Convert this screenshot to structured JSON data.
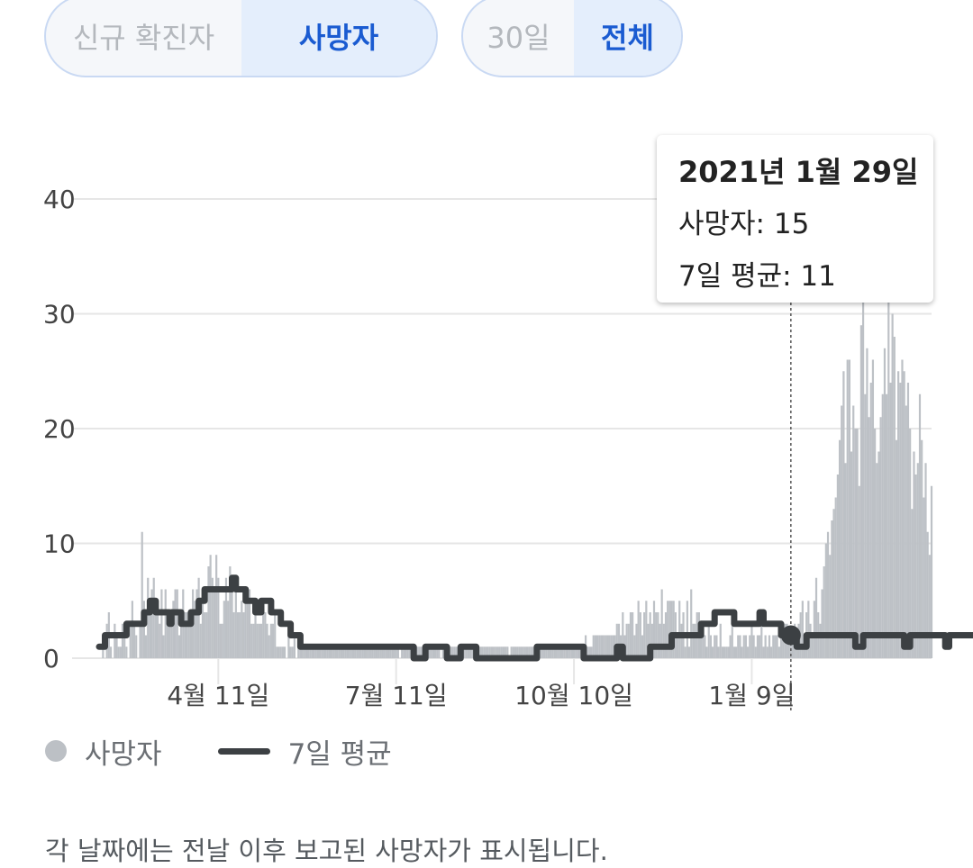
{
  "toggles": {
    "metric": [
      "신규 확진자",
      "사망자"
    ],
    "metric_selected": 1,
    "range": [
      "30일",
      "전체"
    ],
    "range_selected": 1
  },
  "tooltip": {
    "date": "2021년 1월 29일",
    "deaths_label": "사망자: 15",
    "avg_label": "7일 평균: 11"
  },
  "legend": {
    "deaths": "사망자",
    "avg": "7일 평균"
  },
  "footnote": "각 날짜에는 전날 이후 보고된 사망자가 표시됩니다.",
  "colors": {
    "bar": "#bdc1c6",
    "line": "#3c4043",
    "grid": "#e6e6e6",
    "accent": "#1a5bd1"
  },
  "chart_data": {
    "type": "bar",
    "ylim": [
      0,
      40
    ],
    "yticks": [
      0,
      10,
      20,
      30,
      40
    ],
    "xticks": [
      {
        "day": 61,
        "label": "4월 11일"
      },
      {
        "day": 152,
        "label": "7월 11일"
      },
      {
        "day": 243,
        "label": "10월 10일"
      },
      {
        "day": 334,
        "label": "1월 9일"
      }
    ],
    "grid": true,
    "legend_position": "bottom-left",
    "highlight_index": 354,
    "series": [
      {
        "name": "사망자",
        "type": "bar",
        "values": [
          0,
          0,
          2,
          0,
          3,
          4,
          1,
          0,
          3,
          2,
          1,
          1,
          3,
          3,
          1,
          0,
          3,
          5,
          3,
          2,
          0,
          3,
          11,
          5,
          2,
          7,
          4,
          6,
          7,
          5,
          5,
          3,
          6,
          2,
          6,
          4,
          4,
          3,
          5,
          6,
          6,
          2,
          3,
          6,
          4,
          4,
          4,
          3,
          6,
          5,
          6,
          7,
          3,
          5,
          4,
          4,
          8,
          9,
          7,
          6,
          9,
          7,
          3,
          3,
          5,
          7,
          5,
          8,
          7,
          4,
          7,
          4,
          4,
          5,
          4,
          5,
          5,
          6,
          3,
          3,
          4,
          3,
          3,
          3,
          5,
          4,
          3,
          2,
          3,
          3,
          4,
          1,
          1,
          1,
          1,
          1,
          0,
          2,
          1,
          1,
          2,
          0,
          1,
          1,
          1,
          1,
          1,
          1,
          1,
          1,
          1,
          1,
          1,
          1,
          1,
          1,
          1,
          1,
          1,
          1,
          1,
          1,
          1,
          1,
          1,
          1,
          1,
          1,
          1,
          1,
          1,
          1,
          1,
          1,
          1,
          1,
          1,
          1,
          1,
          1,
          1,
          1,
          1,
          1,
          1,
          1,
          1,
          1,
          1,
          1,
          1,
          1,
          1,
          1,
          0,
          1,
          1,
          1,
          1,
          1,
          1,
          1,
          1,
          1,
          1,
          1,
          1,
          1,
          1,
          1,
          1,
          1,
          1,
          1,
          1,
          0,
          1,
          0,
          1,
          1,
          1,
          1,
          1,
          1,
          1,
          1,
          1,
          1,
          1,
          1,
          1,
          1,
          1,
          1,
          1,
          1,
          1,
          1,
          1,
          1,
          1,
          1,
          1,
          1,
          1,
          1,
          1,
          1,
          1,
          1,
          0,
          1,
          1,
          1,
          1,
          1,
          1,
          1,
          1,
          1,
          1,
          1,
          1,
          1,
          1,
          1,
          1,
          1,
          1,
          1,
          1,
          1,
          1,
          1,
          1,
          1,
          1,
          1,
          1,
          1,
          1,
          1,
          1,
          1,
          1,
          1,
          1,
          1,
          1,
          2,
          1,
          1,
          1,
          2,
          2,
          2,
          2,
          2,
          2,
          2,
          2,
          2,
          2,
          2,
          2,
          3,
          3,
          2,
          4,
          2,
          3,
          3,
          4,
          4,
          2,
          3,
          5,
          4,
          2,
          4,
          5,
          3,
          4,
          3,
          5,
          4,
          4,
          3,
          6,
          3,
          4,
          5,
          5,
          5,
          5,
          4,
          2,
          5,
          3,
          4,
          1,
          5,
          1,
          6,
          3,
          3,
          4,
          4,
          3,
          3,
          2,
          1,
          3,
          2,
          1,
          2,
          2,
          1,
          3,
          1,
          1,
          1,
          1,
          2,
          3,
          1,
          1,
          2,
          2,
          1,
          2,
          2,
          1,
          2,
          3,
          2,
          1,
          2,
          2,
          3,
          1,
          2,
          1,
          2,
          1,
          2,
          2,
          2,
          1,
          2,
          2,
          3,
          3,
          2,
          2,
          2,
          3,
          1,
          3,
          4,
          5,
          2,
          4,
          5,
          3,
          2,
          5,
          7,
          4,
          3,
          6,
          8,
          10,
          11,
          9,
          12,
          13,
          14,
          16,
          19,
          22,
          25,
          17,
          26,
          26,
          18,
          22,
          20,
          20,
          15,
          29,
          34,
          23,
          27,
          21,
          24,
          26,
          20,
          17,
          18,
          21,
          23,
          27,
          23,
          31,
          24,
          30,
          28,
          19,
          25,
          24,
          26,
          25,
          22,
          24,
          20,
          13,
          18,
          16,
          17,
          23,
          19,
          14,
          17,
          11,
          9,
          15
        ]
      },
      {
        "name": "7일 평균",
        "type": "line",
        "values": [
          1,
          1,
          1,
          2,
          2,
          2,
          2,
          2,
          2,
          2,
          2,
          2,
          2,
          2,
          3,
          3,
          3,
          3,
          3,
          3,
          3,
          3,
          3,
          4,
          4,
          4,
          5,
          5,
          5,
          4,
          4,
          4,
          4,
          4,
          4,
          4,
          3,
          4,
          4,
          4,
          4,
          4,
          3,
          3,
          3,
          3,
          3,
          4,
          4,
          4,
          4,
          5,
          5,
          5,
          6,
          6,
          6,
          6,
          6,
          6,
          6,
          6,
          6,
          6,
          6,
          6,
          6,
          6,
          7,
          7,
          6,
          6,
          6,
          6,
          6,
          5,
          5,
          5,
          5,
          5,
          4,
          4,
          4,
          5,
          5,
          5,
          5,
          5,
          4,
          4,
          4,
          4,
          4,
          3,
          3,
          3,
          3,
          3,
          2,
          2,
          2,
          2,
          2,
          1,
          1,
          1,
          1,
          1,
          1,
          1,
          1,
          1,
          1,
          1,
          1,
          1,
          1,
          1,
          1,
          1,
          1,
          1,
          1,
          1,
          1,
          1,
          1,
          1,
          1,
          1,
          1,
          1,
          1,
          1,
          1,
          1,
          1,
          1,
          1,
          1,
          1,
          1,
          1,
          1,
          1,
          1,
          1,
          1,
          1,
          1,
          1,
          1,
          1,
          1,
          1,
          1,
          1,
          1,
          1,
          1,
          1,
          0,
          0,
          0,
          0,
          0,
          0,
          1,
          1,
          1,
          1,
          1,
          1,
          1,
          1,
          1,
          1,
          1,
          0,
          0,
          0,
          0,
          0,
          0,
          0,
          1,
          1,
          1,
          1,
          1,
          1,
          1,
          1,
          0,
          0,
          0,
          0,
          0,
          0,
          0,
          0,
          0,
          0,
          0,
          0,
          0,
          0,
          0,
          0,
          0,
          0,
          0,
          0,
          0,
          0,
          0,
          0,
          0,
          0,
          0,
          0,
          0,
          0,
          0,
          1,
          1,
          1,
          1,
          1,
          1,
          1,
          1,
          1,
          1,
          1,
          1,
          1,
          1,
          1,
          1,
          1,
          1,
          1,
          1,
          1,
          1,
          1,
          1,
          0,
          0,
          0,
          0,
          0,
          0,
          0,
          0,
          0,
          0,
          0,
          0,
          0,
          0,
          0,
          0,
          0,
          1,
          1,
          1,
          0,
          0,
          0,
          0,
          0,
          0,
          0,
          0,
          0,
          0,
          0,
          0,
          0,
          0,
          1,
          1,
          1,
          1,
          1,
          1,
          1,
          1,
          1,
          1,
          1,
          2,
          2,
          2,
          2,
          2,
          2,
          2,
          2,
          2,
          2,
          2,
          2,
          2,
          2,
          2,
          3,
          3,
          3,
          3,
          3,
          3,
          3,
          4,
          4,
          4,
          4,
          4,
          4,
          4,
          4,
          4,
          4,
          3,
          3,
          3,
          3,
          3,
          3,
          3,
          3,
          3,
          3,
          3,
          3,
          3,
          4,
          4,
          3,
          3,
          3,
          3,
          3,
          3,
          3,
          3,
          3,
          2,
          2,
          2,
          2,
          2,
          2,
          2,
          2,
          1,
          1,
          1,
          1,
          1,
          2,
          2,
          2,
          2,
          2,
          2,
          2,
          2,
          2,
          2,
          2,
          2,
          2,
          2,
          2,
          2,
          2,
          2,
          2,
          2,
          2,
          2,
          2,
          2,
          2,
          1,
          1,
          1,
          1,
          2,
          2,
          2,
          2,
          2,
          2,
          2,
          2,
          2,
          2,
          2,
          2,
          2,
          2,
          2,
          2,
          2,
          2,
          2,
          2,
          2,
          1,
          1,
          1,
          2,
          2,
          2,
          2,
          2,
          2,
          2,
          2,
          2,
          2,
          2,
          2,
          2,
          2,
          2,
          2,
          2,
          2,
          1,
          1,
          2,
          2,
          2,
          2,
          2,
          2,
          2,
          2,
          2,
          2,
          2,
          2,
          2,
          2,
          2,
          2,
          2,
          2,
          2,
          2,
          2,
          2,
          3,
          3,
          3,
          3,
          4,
          4,
          4,
          4,
          4,
          4,
          5,
          5,
          5,
          5,
          5,
          5,
          5,
          5,
          5,
          6,
          7,
          8,
          9,
          10,
          11,
          12,
          13,
          14,
          15,
          16,
          17,
          17,
          18,
          18,
          18,
          18,
          18,
          19,
          19,
          19,
          20,
          20,
          21,
          21,
          21,
          21,
          21,
          22,
          22,
          22,
          21,
          21,
          22,
          22,
          22,
          23,
          23,
          23,
          23,
          23,
          23,
          23,
          23,
          22,
          21,
          20,
          19,
          19,
          19,
          18,
          18,
          17,
          17,
          16,
          15,
          15,
          15,
          14,
          14,
          13,
          12,
          11,
          11
        ]
      }
    ]
  }
}
